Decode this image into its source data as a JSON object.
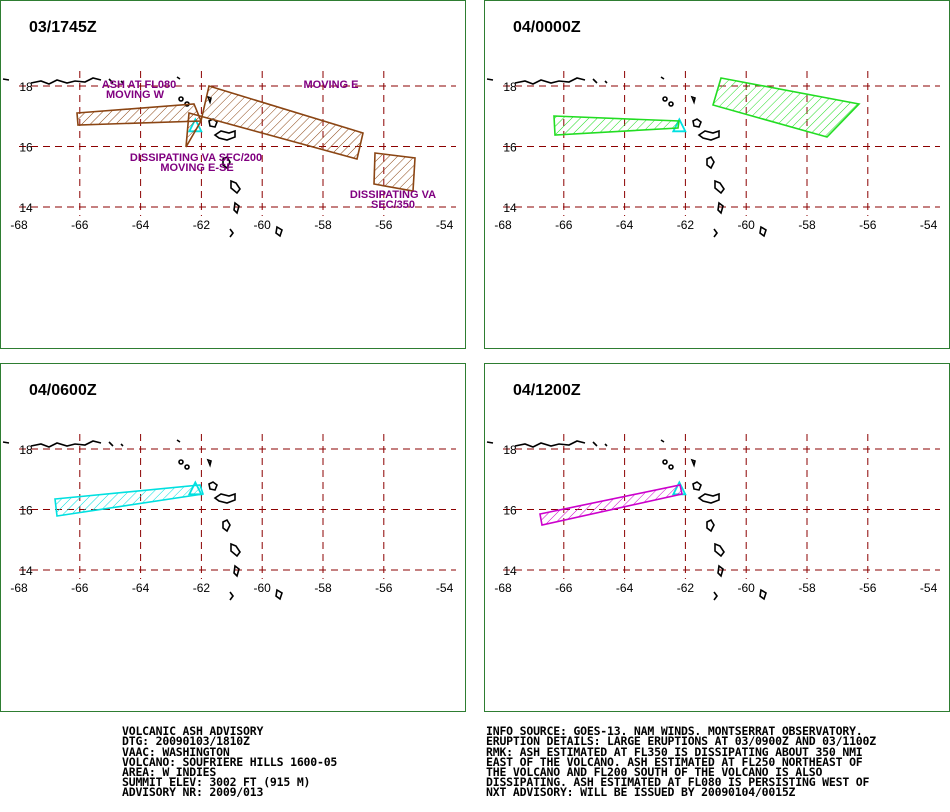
{
  "panels": [
    {
      "title": "03/1745Z",
      "fill_color": "#8b4513",
      "labels": [
        "ASH AT FL080",
        "MOVING W",
        "MOVING E",
        "DISSIPATING VA SFC/200",
        "MOVING E-SE",
        "DISSIPATING VA",
        "SEC/350"
      ]
    },
    {
      "title": "04/0000Z",
      "fill_color": "#22dd22",
      "labels": []
    },
    {
      "title": "04/0600Z",
      "fill_color": "#00e0e0",
      "labels": []
    },
    {
      "title": "04/1200Z",
      "fill_color": "#cc00cc",
      "labels": []
    }
  ],
  "map": {
    "lon_ticks": [
      "-68",
      "-66",
      "-64",
      "-62",
      "-60",
      "-58",
      "-56",
      "-54"
    ],
    "lat_ticks": [
      "18",
      "16",
      "14"
    ],
    "grid_color": "#8b0000",
    "label_color": "#800080",
    "volcano_marker_color": "#00e0e0"
  },
  "advisory": {
    "header": "VOLCANIC ASH ADVISORY",
    "dtg": "DTG: 20090103/1810Z",
    "vaac": "VAAC: WASHINGTON",
    "volcano": "VOLCANO: SOUFRIERE HILLS 1600-05",
    "area": "AREA: W_INDIES",
    "summit": "SUMMIT ELEV: 3002 FT (915 M)",
    "advisory_nr": "ADVISORY NR: 2009/013"
  },
  "remarks": {
    "line1": "INFO SOURCE: GOES-13. NAM WINDS. MONTSERRAT OBSERVATORY.",
    "line2": "ERUPTION DETAILS: LARGE ERUPTIONS AT 03/0900Z AND 03/1100Z",
    "line3": "RMK: ASH ESTIMATED AT FL350 IS DISSIPATING ABOUT 350 NMI",
    "line4": "EAST OF THE VOLCANO. ASH ESTIMATED AT FL250 NORTHEAST OF",
    "line5": "THE VOLCANO AND FL200 SOUTH OF THE VOLCANO IS ALSO",
    "line6": "DISSIPATING. ASH ESTIMATED AT FL080 IS PERSISTING WEST OF",
    "line7": "NXT ADVISORY: WILL BE ISSUED BY 20090104/0015Z"
  }
}
